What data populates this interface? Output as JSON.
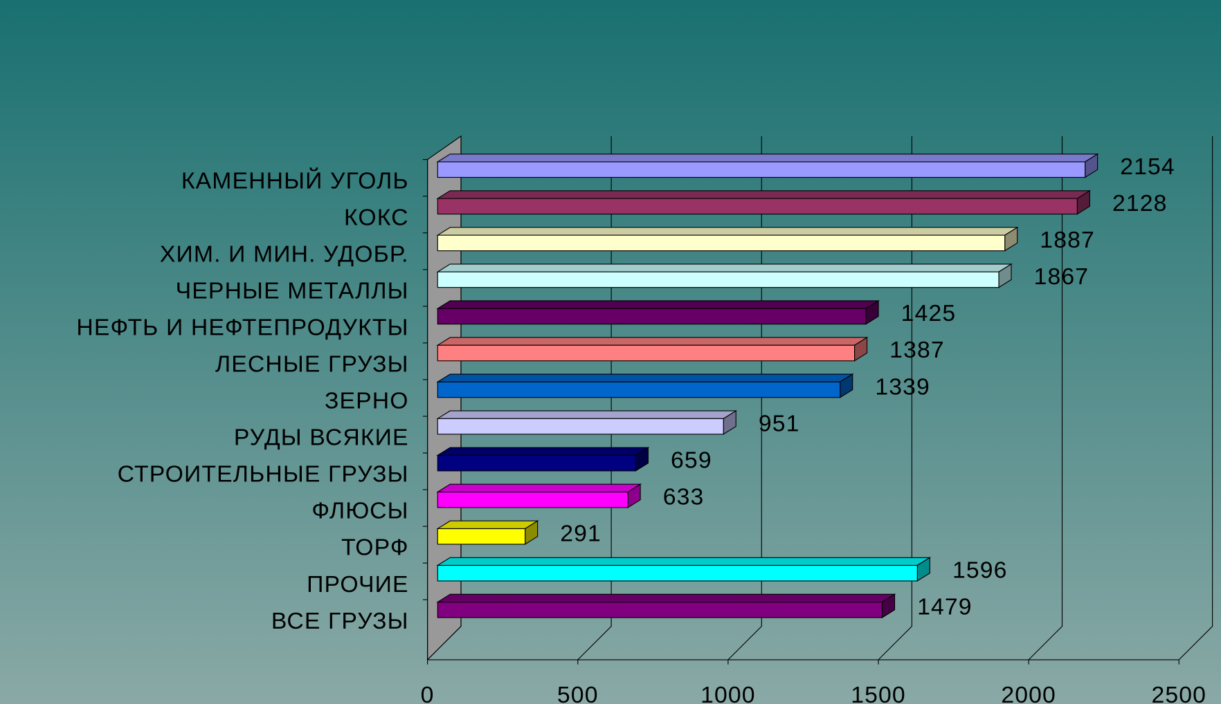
{
  "chart_data": {
    "type": "bar3d_horizontal",
    "categories": [
      "КАМЕННЫЙ УГОЛЬ",
      "КОКС",
      "ХИМ. И МИН. УДОБР.",
      "ЧЕРНЫЕ МЕТАЛЛЫ",
      "НЕФТЬ И НЕФТЕПРОДУКТЫ",
      "ЛЕСНЫЕ ГРУЗЫ",
      "ЗЕРНО",
      "РУДЫ ВСЯКИЕ",
      "СТРОИТЕЛЬНЫЕ ГРУЗЫ",
      "ФЛЮСЫ",
      "ТОРФ",
      "ПРОЧИЕ",
      "ВСЕ ГРУЗЫ"
    ],
    "values": [
      2154,
      2128,
      1887,
      1867,
      1425,
      1387,
      1339,
      951,
      659,
      633,
      291,
      1596,
      1479
    ],
    "colors": [
      "#9999ff",
      "#993366",
      "#ffffcc",
      "#ccffff",
      "#660066",
      "#ff8080",
      "#0066cc",
      "#ccccff",
      "#000080",
      "#ff00ff",
      "#ffff00",
      "#00ffff",
      "#800080"
    ],
    "xlim": [
      0,
      2500
    ],
    "xticks": [
      0,
      500,
      1000,
      1500,
      2000,
      2500
    ],
    "grid": true
  }
}
